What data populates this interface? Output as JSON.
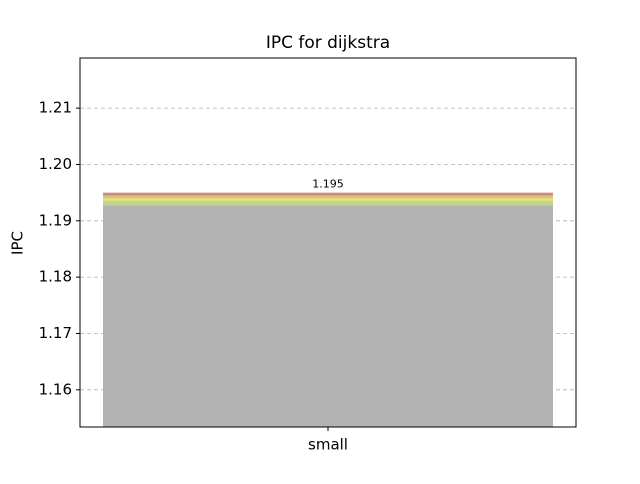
{
  "chart_data": {
    "type": "bar",
    "title": "IPC for dijkstra",
    "ylabel": "IPC",
    "categories": [
      "small"
    ],
    "series": [
      {
        "color": "#c98c82",
        "values": [
          1.195
        ]
      },
      {
        "color": "#d8c47e",
        "values": [
          1.1945
        ]
      },
      {
        "color": "#e6e07c",
        "values": [
          1.194
        ]
      },
      {
        "color": "#bcd48e",
        "values": [
          1.1935
        ]
      },
      {
        "color": "#b3b3b3",
        "values": [
          1.1927
        ]
      }
    ],
    "ylim": [
      1.1534,
      1.2189
    ],
    "yticks": [
      1.16,
      1.17,
      1.18,
      1.19,
      {
        "value": 1.2,
        "label": "1.20"
      },
      1.21
    ],
    "grid": true
  }
}
